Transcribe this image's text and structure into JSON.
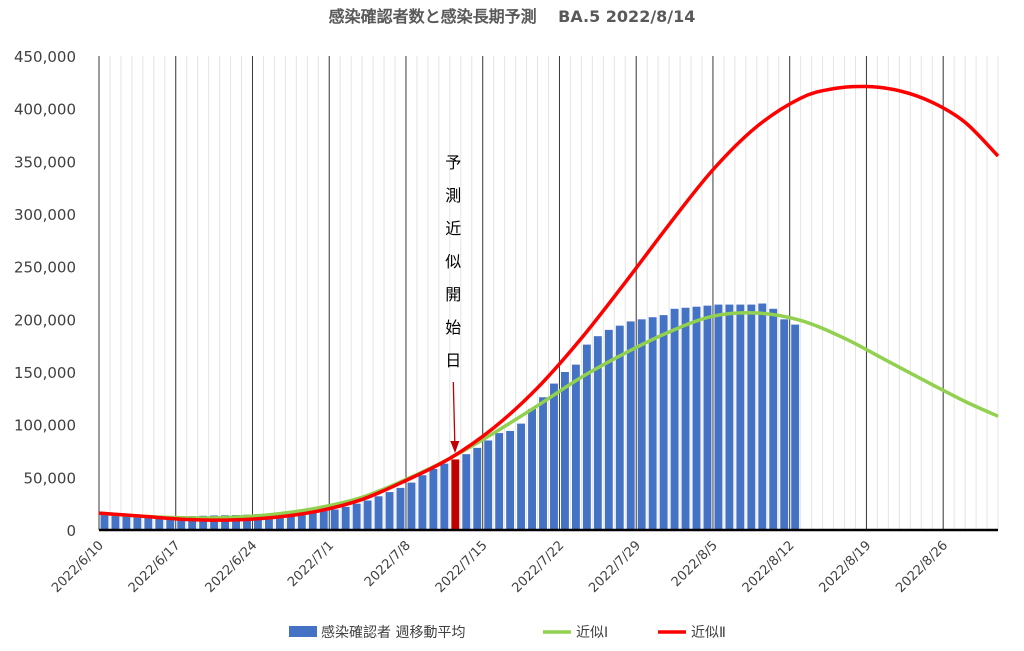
{
  "chart_data": {
    "type": "bar+line",
    "title": "感染確認者数と感染長期予測　 BA.5  2022/8/14",
    "x_start": "2022/6/10",
    "x_end": "2022/8/31",
    "ylim": [
      0,
      450000
    ],
    "yticks": [
      0,
      50000,
      100000,
      150000,
      200000,
      250000,
      300000,
      350000,
      400000,
      450000
    ],
    "ytick_labels": [
      "0",
      "50,000",
      "100,000",
      "150,000",
      "200,000",
      "250,000",
      "300,000",
      "350,000",
      "400,000",
      "450,000"
    ],
    "xtick_labels": [
      "2022/6/10",
      "2022/6/17",
      "2022/6/24",
      "2022/7/1",
      "2022/7/8",
      "2022/7/15",
      "2022/7/22",
      "2022/7/29",
      "2022/8/5",
      "2022/8/12",
      "2022/8/19",
      "2022/8/26"
    ],
    "grid": "vertical major + minor",
    "annotation": {
      "text": "予測近似開始日",
      "date": "2022/7/12"
    },
    "bars": {
      "name": "感染確認者 週移動平均",
      "color": "#4472C4",
      "highlight_color": "#C00000",
      "highlight_date": "2022/7/12",
      "dates": [
        "2022/6/10",
        "2022/6/11",
        "2022/6/12",
        "2022/6/13",
        "2022/6/14",
        "2022/6/15",
        "2022/6/16",
        "2022/6/17",
        "2022/6/18",
        "2022/6/19",
        "2022/6/20",
        "2022/6/21",
        "2022/6/22",
        "2022/6/23",
        "2022/6/24",
        "2022/6/25",
        "2022/6/26",
        "2022/6/27",
        "2022/6/28",
        "2022/6/29",
        "2022/6/30",
        "2022/7/1",
        "2022/7/2",
        "2022/7/3",
        "2022/7/4",
        "2022/7/5",
        "2022/7/6",
        "2022/7/7",
        "2022/7/8",
        "2022/7/9",
        "2022/7/10",
        "2022/7/11",
        "2022/7/12",
        "2022/7/13",
        "2022/7/14",
        "2022/7/15",
        "2022/7/16",
        "2022/7/17",
        "2022/7/18",
        "2022/7/19",
        "2022/7/20",
        "2022/7/21",
        "2022/7/22",
        "2022/7/23",
        "2022/7/24",
        "2022/7/25",
        "2022/7/26",
        "2022/7/27",
        "2022/7/28",
        "2022/7/29",
        "2022/7/30",
        "2022/7/31",
        "2022/8/1",
        "2022/8/2",
        "2022/8/3",
        "2022/8/4",
        "2022/8/5",
        "2022/8/6",
        "2022/8/7",
        "2022/8/8",
        "2022/8/9",
        "2022/8/10",
        "2022/8/11",
        "2022/8/12"
      ],
      "values": [
        14500,
        13800,
        13200,
        12800,
        12500,
        12300,
        12500,
        13000,
        13200,
        13500,
        13800,
        14000,
        14200,
        14500,
        15000,
        15500,
        16000,
        16500,
        17000,
        17500,
        18000,
        19500,
        22000,
        25000,
        28000,
        32000,
        36000,
        40000,
        45000,
        52000,
        58000,
        63000,
        67000,
        72000,
        78000,
        85000,
        92000,
        94000,
        101000,
        115000,
        126000,
        139000,
        150000,
        157000,
        176000,
        184000,
        190000,
        194000,
        198000,
        200000,
        202000,
        204000,
        210000,
        211000,
        212000,
        213000,
        214000,
        214000,
        214000,
        214000,
        215000,
        210000,
        200000,
        195000
      ]
    },
    "series": [
      {
        "name": "近似Ⅰ",
        "color": "#92D050",
        "dates": [
          "2022/6/10",
          "2022/6/14",
          "2022/6/18",
          "2022/6/22",
          "2022/6/26",
          "2022/6/30",
          "2022/7/4",
          "2022/7/8",
          "2022/7/12",
          "2022/7/16",
          "2022/7/20",
          "2022/7/24",
          "2022/7/28",
          "2022/8/1",
          "2022/8/5",
          "2022/8/9",
          "2022/8/13",
          "2022/8/17",
          "2022/8/21",
          "2022/8/25",
          "2022/8/28",
          "2022/8/31"
        ],
        "values": [
          16000,
          13000,
          11500,
          12000,
          15000,
          21000,
          31000,
          48000,
          68000,
          92000,
          118000,
          145000,
          168000,
          188000,
          203000,
          206000,
          199000,
          182000,
          160000,
          138000,
          122000,
          108000
        ]
      },
      {
        "name": "近似Ⅱ",
        "color": "#FF0000",
        "dates": [
          "2022/6/10",
          "2022/6/14",
          "2022/6/18",
          "2022/6/22",
          "2022/6/26",
          "2022/6/30",
          "2022/7/4",
          "2022/7/8",
          "2022/7/12",
          "2022/7/16",
          "2022/7/20",
          "2022/7/24",
          "2022/7/28",
          "2022/8/1",
          "2022/8/5",
          "2022/8/9",
          "2022/8/13",
          "2022/8/16",
          "2022/8/19",
          "2022/8/22",
          "2022/8/25",
          "2022/8/28",
          "2022/8/31"
        ],
        "values": [
          16000,
          13000,
          10000,
          9500,
          12000,
          18000,
          29000,
          47000,
          68000,
          97000,
          135000,
          182000,
          235000,
          290000,
          342000,
          383000,
          410000,
          419000,
          421000,
          417000,
          406000,
          387000,
          355000
        ]
      }
    ],
    "legend": {
      "position": "bottom"
    }
  }
}
